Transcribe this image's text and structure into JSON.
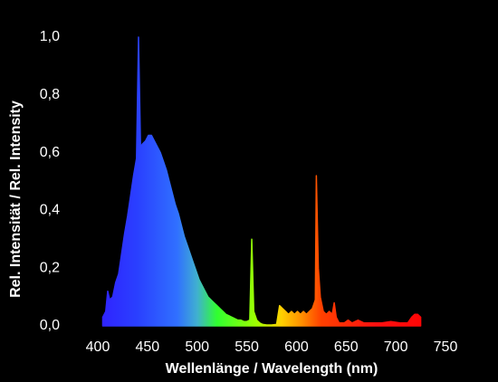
{
  "chart_data": {
    "type": "area",
    "x_label": "Wellenlänge / Wavelength (nm)",
    "y_label": "Rel. Intensität / Rel. Intensity",
    "x": [
      405,
      408,
      410,
      412,
      415,
      418,
      421,
      424,
      427,
      430,
      433,
      436,
      439,
      441,
      443,
      445,
      448,
      451,
      454,
      457,
      460,
      463,
      466,
      469,
      472,
      475,
      478,
      481,
      484,
      487,
      490,
      493,
      496,
      499,
      502,
      505,
      508,
      511,
      514,
      517,
      520,
      523,
      526,
      529,
      532,
      535,
      538,
      541,
      544,
      547,
      550,
      553,
      555,
      557,
      560,
      563,
      566,
      570,
      575,
      580,
      583,
      586,
      589,
      592,
      595,
      598,
      601,
      604,
      607,
      610,
      613,
      616,
      619,
      620,
      622,
      624,
      627,
      630,
      633,
      636,
      638,
      640,
      643,
      648,
      652,
      656,
      662,
      668,
      675,
      685,
      695,
      705,
      712,
      716,
      719,
      722,
      725
    ],
    "values": [
      0.03,
      0.05,
      0.12,
      0.09,
      0.1,
      0.15,
      0.18,
      0.25,
      0.32,
      0.38,
      0.45,
      0.52,
      0.58,
      1.0,
      0.62,
      0.63,
      0.64,
      0.66,
      0.66,
      0.64,
      0.62,
      0.6,
      0.57,
      0.54,
      0.5,
      0.46,
      0.42,
      0.39,
      0.35,
      0.31,
      0.28,
      0.25,
      0.22,
      0.19,
      0.16,
      0.14,
      0.12,
      0.1,
      0.09,
      0.08,
      0.07,
      0.06,
      0.05,
      0.04,
      0.035,
      0.03,
      0.025,
      0.02,
      0.02,
      0.015,
      0.015,
      0.02,
      0.3,
      0.05,
      0.02,
      0.01,
      0.005,
      0.003,
      0.003,
      0.005,
      0.07,
      0.06,
      0.05,
      0.04,
      0.05,
      0.04,
      0.05,
      0.04,
      0.05,
      0.04,
      0.05,
      0.06,
      0.09,
      0.52,
      0.2,
      0.1,
      0.05,
      0.04,
      0.05,
      0.04,
      0.08,
      0.03,
      0.01,
      0.01,
      0.02,
      0.01,
      0.02,
      0.01,
      0.01,
      0.01,
      0.015,
      0.01,
      0.01,
      0.03,
      0.04,
      0.04,
      0.03
    ],
    "xlim": [
      400,
      750
    ],
    "xticks": [
      400,
      450,
      500,
      550,
      600,
      650,
      700,
      750
    ],
    "ylim": [
      0,
      1.0
    ],
    "yticks": [
      {
        "value": 0,
        "label": "0,0"
      },
      {
        "value": 0.2,
        "label": "0,2"
      },
      {
        "value": 0.4,
        "label": "0,4"
      },
      {
        "value": 0.6,
        "label": "0,6"
      },
      {
        "value": 0.8,
        "label": "0,8"
      },
      {
        "value": 1.0,
        "label": "1,0"
      }
    ],
    "grid": false
  }
}
